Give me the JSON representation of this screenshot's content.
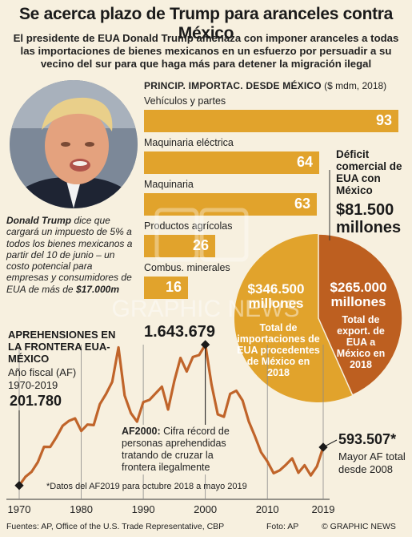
{
  "title": "Se acerca plazo de Trump para aranceles contra México",
  "subtitle": "El presidente de EUA Donald Trump amenaza con imponer aranceles a todas las importaciones de bienes mexicanos en un esfuerzo por persuadir a su vecino del sur para que haga más para detener la migración ilegal",
  "description": {
    "name": "Donald Trump",
    "text": " dice que cargará un impuesto de 5% a todos los bienes mexicanos a partir del 10 de junio – un costo potencial para empresas y consumidores de EUA de más de ",
    "amount": "$17.000m"
  },
  "photo": {
    "icon": "portrait-photo"
  },
  "watermark": {
    "text": "GRAPHIC NEWS"
  },
  "colors": {
    "background": "#f7f0df",
    "bar": "#e1a32c",
    "pie_imports": "#e1a32c",
    "pie_exports": "#bd5f20",
    "line": "#c0642a"
  },
  "chart_data": [
    {
      "type": "bar",
      "title": "PRINCIP. IMPORTAC. DESDE MÉXICO",
      "unit": "($ mdm, 2018)",
      "categories": [
        "Vehículos y partes",
        "Maquinaria eléctrica",
        "Maquinaria",
        "Productos agrícolas",
        "Combus. minerales"
      ],
      "values": [
        93,
        64,
        63,
        26,
        16
      ],
      "xlim": [
        0,
        95
      ]
    },
    {
      "type": "pie",
      "title": "Déficit comercial de EUA con México",
      "total": "$81.500 millones",
      "slices": [
        {
          "value_label": "$346.500 millones",
          "label": "Total de importaciones de EUA procedentes de México en 2018",
          "value": 346500
        },
        {
          "value_label": "$265.000 millones",
          "label": "Total de export. de EUA a México en 2018",
          "value": 265000
        }
      ]
    },
    {
      "type": "line",
      "title": "APREHENSIONES EN LA FRONTERA EUA-MÉXICO",
      "subtitle": "Año fiscal (AF) 1970-2019",
      "x": [
        1970,
        1971,
        1972,
        1973,
        1974,
        1975,
        1976,
        1977,
        1978,
        1979,
        1980,
        1981,
        1982,
        1983,
        1984,
        1985,
        1986,
        1987,
        1988,
        1989,
        1990,
        1991,
        1992,
        1993,
        1994,
        1995,
        1996,
        1997,
        1998,
        1999,
        2000,
        2001,
        2002,
        2003,
        2004,
        2005,
        2006,
        2007,
        2008,
        2009,
        2010,
        2011,
        2012,
        2013,
        2014,
        2015,
        2016,
        2017,
        2018,
        2019
      ],
      "y": [
        201780,
        290152,
        341871,
        440757,
        596796,
        596709,
        696039,
        812541,
        862217,
        888729,
        759420,
        825290,
        819919,
        1033974,
        1138566,
        1262435,
        1615844,
        1122067,
        942561,
        854939,
        1054845,
        1077876,
        1145574,
        1212886,
        979101,
        1271390,
        1507020,
        1368707,
        1516680,
        1537000,
        1643679,
        1235718,
        929809,
        905065,
        1139282,
        1171396,
        1071972,
        858638,
        705005,
        540865,
        447731,
        327577,
        356873,
        414397,
        479371,
        331333,
        408870,
        303916,
        396579,
        593507
      ],
      "xticks": [
        1970,
        1980,
        1990,
        2000,
        2010,
        2019
      ],
      "ylim": [
        150000,
        1750000
      ],
      "peak_label": "1.643.679",
      "first_label": "201.780",
      "last_label": "593.507*",
      "last_note": "Mayor AF total desde 2008",
      "annotation_bold": "AF2000:",
      "annotation_text": " Cifra récord de personas aprehendidas tratando de cruzar la frontera ilegalmente",
      "footnote": "*Datos del AF2019 para octubre 2018 a mayo 2019"
    }
  ],
  "footer": {
    "sources": "Fuentes: AP, Office of the U.S. Trade Representative, CBP",
    "photo_credit": "Foto: AP",
    "copyright": "© GRAPHIC NEWS"
  }
}
